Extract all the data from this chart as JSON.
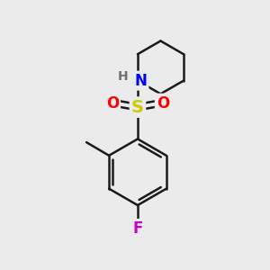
{
  "bg_color": "#ebebeb",
  "atom_colors": {
    "C": "#1a1a1a",
    "H": "#707070",
    "N": "#0000ff",
    "O": "#ff0000",
    "S": "#cccc00",
    "F": "#cc00cc"
  },
  "bond_color": "#1a1a1a",
  "bond_width": 1.8,
  "figsize": [
    3.0,
    3.0
  ],
  "dpi": 100
}
